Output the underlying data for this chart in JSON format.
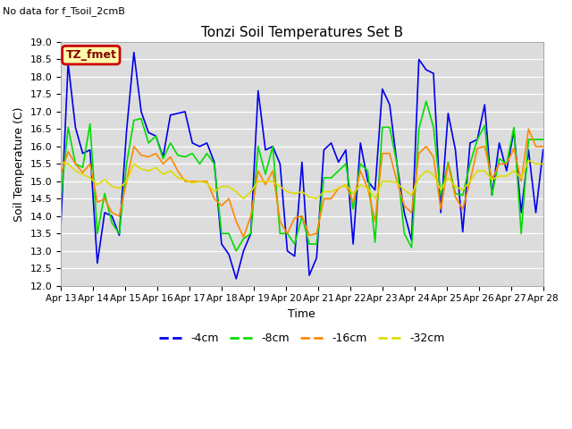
{
  "title": "Tonzi Soil Temperatures Set B",
  "note": "No data for f_Tsoil_2cmB",
  "legend_label": "TZ_fmet",
  "xlabel": "Time",
  "ylabel": "Soil Temperature (C)",
  "ylim": [
    12.0,
    19.0
  ],
  "yticks": [
    12.0,
    12.5,
    13.0,
    13.5,
    14.0,
    14.5,
    15.0,
    15.5,
    16.0,
    16.5,
    17.0,
    17.5,
    18.0,
    18.5,
    19.0
  ],
  "colors": {
    "-4cm": "#0000ee",
    "-8cm": "#00dd00",
    "-16cm": "#ff8800",
    "-32cm": "#dddd00"
  },
  "bg_color": "#dcdcdc",
  "xtick_labels": [
    "Apr 13",
    "Apr 14",
    "Apr 15",
    "Apr 16",
    "Apr 17",
    "Apr 18",
    "Apr 19",
    "Apr 20",
    "Apr 21",
    "Apr 22",
    "Apr 23",
    "Apr 24",
    "Apr 25",
    "Apr 26",
    "Apr 27",
    "Apr 28"
  ],
  "series": {
    "-4cm": [
      13.7,
      18.4,
      16.55,
      15.8,
      15.9,
      12.65,
      14.1,
      14.0,
      13.45,
      16.45,
      18.7,
      17.0,
      16.4,
      16.3,
      15.7,
      16.9,
      16.95,
      17.0,
      16.1,
      16.0,
      16.1,
      15.55,
      13.2,
      12.9,
      12.2,
      13.0,
      13.5,
      17.6,
      15.9,
      16.0,
      15.5,
      13.0,
      12.85,
      15.55,
      12.3,
      12.8,
      15.9,
      16.1,
      15.55,
      15.9,
      13.2,
      16.1,
      15.0,
      14.75,
      17.65,
      17.2,
      15.5,
      14.1,
      13.3,
      18.5,
      18.2,
      18.1,
      14.1,
      16.95,
      15.9,
      13.55,
      16.1,
      16.2,
      17.2,
      14.6,
      16.1,
      15.3,
      16.45,
      14.1,
      15.9,
      14.1,
      15.9
    ],
    "-8cm": [
      14.5,
      16.55,
      15.5,
      15.4,
      16.65,
      13.5,
      14.65,
      13.8,
      13.5,
      15.5,
      16.75,
      16.8,
      16.1,
      16.3,
      15.65,
      16.1,
      15.75,
      15.7,
      15.8,
      15.5,
      15.8,
      15.5,
      13.5,
      13.5,
      13.0,
      13.35,
      13.5,
      16.0,
      15.2,
      16.0,
      13.5,
      13.5,
      13.2,
      14.0,
      13.2,
      13.2,
      15.1,
      15.1,
      15.3,
      15.5,
      14.2,
      15.5,
      15.3,
      13.25,
      16.55,
      16.55,
      15.5,
      13.5,
      13.1,
      16.5,
      17.3,
      16.55,
      14.6,
      15.55,
      14.65,
      14.6,
      15.5,
      16.2,
      16.6,
      14.6,
      15.65,
      15.5,
      16.55,
      13.5,
      16.2,
      16.2,
      16.2
    ],
    "-16cm": [
      15.2,
      15.85,
      15.5,
      15.25,
      15.5,
      14.4,
      14.5,
      14.1,
      14.0,
      15.0,
      16.0,
      15.75,
      15.7,
      15.8,
      15.5,
      15.7,
      15.3,
      15.0,
      15.0,
      15.0,
      15.0,
      14.5,
      14.3,
      14.5,
      13.85,
      13.4,
      14.0,
      15.3,
      14.9,
      15.3,
      13.85,
      13.5,
      13.95,
      14.0,
      13.45,
      13.5,
      14.5,
      14.5,
      14.8,
      14.9,
      14.4,
      15.3,
      14.8,
      13.85,
      15.8,
      15.8,
      15.0,
      14.3,
      14.1,
      15.8,
      16.0,
      15.7,
      14.2,
      15.5,
      14.55,
      14.2,
      15.0,
      15.95,
      16.0,
      15.05,
      15.5,
      15.5,
      15.95,
      15.0,
      16.5,
      16.0,
      16.0
    ],
    "-32cm": [
      15.55,
      15.5,
      15.3,
      15.2,
      15.1,
      14.9,
      15.05,
      14.85,
      14.8,
      15.0,
      15.5,
      15.35,
      15.3,
      15.4,
      15.2,
      15.3,
      15.1,
      15.05,
      14.95,
      15.0,
      14.95,
      14.7,
      14.85,
      14.85,
      14.7,
      14.5,
      14.7,
      15.0,
      15.0,
      15.0,
      14.85,
      14.7,
      14.65,
      14.7,
      14.55,
      14.5,
      14.7,
      14.7,
      14.8,
      14.9,
      14.65,
      14.9,
      14.8,
      14.5,
      15.0,
      15.0,
      14.95,
      14.75,
      14.6,
      15.1,
      15.3,
      15.2,
      14.75,
      15.1,
      14.85,
      14.75,
      15.0,
      15.3,
      15.3,
      15.05,
      15.15,
      15.15,
      15.3,
      15.1,
      15.6,
      15.5,
      15.5
    ]
  }
}
